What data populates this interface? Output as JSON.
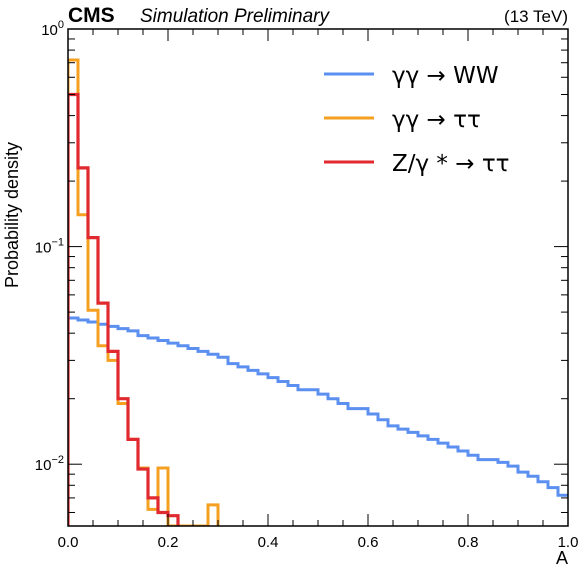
{
  "header": {
    "experiment": "CMS",
    "status": "Simulation Preliminary",
    "energy": "(13 TeV)"
  },
  "chart_data": {
    "type": "line",
    "xlabel": "A",
    "ylabel": "Probability density",
    "xlim": [
      0,
      1
    ],
    "ylim": [
      0.0052,
      1
    ],
    "log_y": true,
    "grid": false,
    "legend_position": "top-right",
    "x_ticks": [
      {
        "value": 0.0,
        "label": "0.0"
      },
      {
        "value": 0.2,
        "label": "0.2"
      },
      {
        "value": 0.4,
        "label": "0.4"
      },
      {
        "value": 0.6,
        "label": "0.6"
      },
      {
        "value": 0.8,
        "label": "0.8"
      },
      {
        "value": 1.0,
        "label": "1.0"
      }
    ],
    "y_ticks": [
      {
        "value": 1,
        "base": "10",
        "exp": "0"
      },
      {
        "value": 0.1,
        "base": "10",
        "exp": "−1"
      },
      {
        "value": 0.01,
        "base": "10",
        "exp": "−2"
      }
    ],
    "bin_width": 0.02,
    "series": [
      {
        "name": "γγ → WW",
        "color": "#5b8ff0",
        "x_start": 0.0,
        "values": [
          0.047,
          0.046,
          0.045,
          0.044,
          0.043,
          0.042,
          0.041,
          0.039,
          0.038,
          0.037,
          0.036,
          0.035,
          0.034,
          0.033,
          0.032,
          0.031,
          0.029,
          0.028,
          0.027,
          0.026,
          0.025,
          0.024,
          0.023,
          0.022,
          0.022,
          0.021,
          0.02,
          0.019,
          0.018,
          0.018,
          0.017,
          0.016,
          0.015,
          0.0145,
          0.014,
          0.0135,
          0.013,
          0.0125,
          0.012,
          0.0115,
          0.011,
          0.0105,
          0.0105,
          0.0102,
          0.0098,
          0.0092,
          0.0088,
          0.0083,
          0.0078,
          0.0072
        ]
      },
      {
        "name": "γγ → ττ",
        "color": "#f5a020",
        "x_start": 0.0,
        "values": [
          0.72,
          0.14,
          0.051,
          0.035,
          0.03,
          0.019,
          0.013,
          0.0096,
          0.0062,
          0.0096,
          0.0052,
          0.0052,
          0.0052,
          0.0052,
          0.0065
        ]
      },
      {
        "name": "Z/γ * → ττ",
        "color": "#e02a2f",
        "x_start": 0.0,
        "values": [
          0.5,
          0.23,
          0.11,
          0.055,
          0.033,
          0.02,
          0.013,
          0.0095,
          0.007,
          0.006,
          0.0058
        ]
      }
    ]
  }
}
